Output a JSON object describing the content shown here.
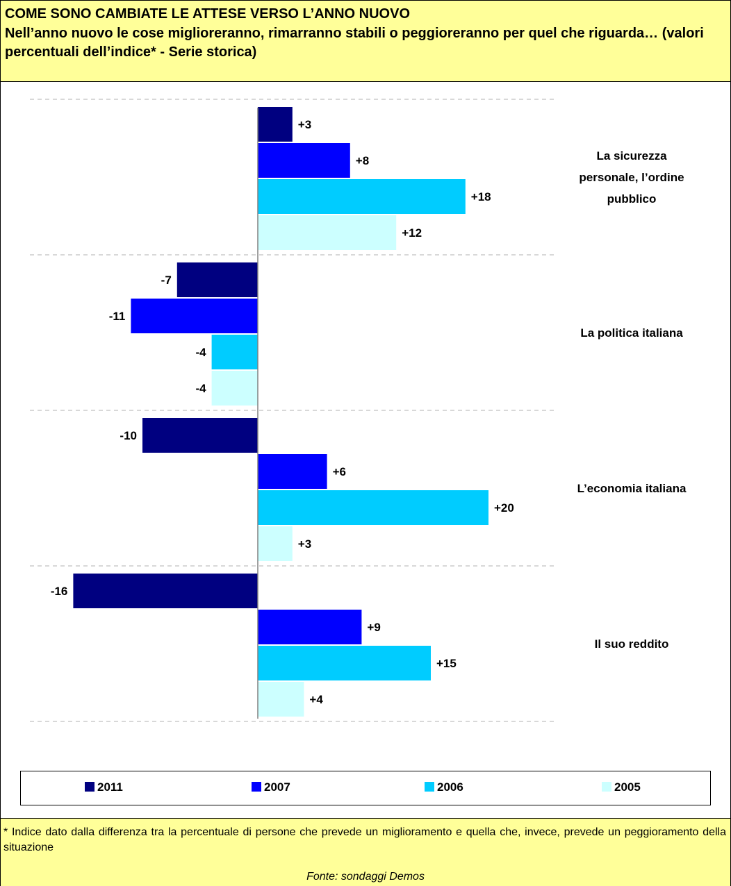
{
  "header": {
    "title": "COME SONO CAMBIATE LE ATTESE VERSO L’ANNO NUOVO",
    "subtitle": "Nell’anno nuovo le cose miglioreranno, rimarranno stabili o peggioreranno per quel che riguarda… (valori percentuali dell’indice* - Serie storica)"
  },
  "chart_data": {
    "type": "bar",
    "orientation": "horizontal",
    "categories": [
      "La sicurezza personale, l’ordine pubblico",
      "La politica italiana",
      "L’economia italiana",
      "Il suo reddito"
    ],
    "category_lines": [
      [
        "La sicurezza",
        "personale, l’ordine",
        "pubblico"
      ],
      [
        "La politica italiana"
      ],
      [
        "L’economia italiana"
      ],
      [
        "Il suo reddito"
      ]
    ],
    "series": [
      {
        "name": "2011",
        "color": "#000080",
        "values": [
          3,
          -7,
          -10,
          -16
        ],
        "labels": [
          "+3",
          "-7",
          "-10",
          "-16"
        ]
      },
      {
        "name": "2007",
        "color": "#0000ff",
        "values": [
          8,
          -11,
          6,
          9
        ],
        "labels": [
          "+8",
          "-11",
          "+6",
          "+9"
        ]
      },
      {
        "name": "2006",
        "color": "#00ccff",
        "values": [
          18,
          -4,
          20,
          15
        ],
        "labels": [
          "+18",
          "-4",
          "+20",
          "+15"
        ]
      },
      {
        "name": "2005",
        "color": "#ccffff",
        "values": [
          12,
          -4,
          3,
          4
        ],
        "labels": [
          "+12",
          "-4",
          "+3",
          "+4"
        ]
      }
    ],
    "grid": "dashed horizontal separators between categories",
    "legend": "bottom"
  },
  "footer": {
    "note": "* Indice dato dalla differenza tra la percentuale di persone che prevede un miglioramento e quella che, invece, prevede un peggioramento della situazione",
    "source": "Fonte: sondaggi Demos"
  }
}
